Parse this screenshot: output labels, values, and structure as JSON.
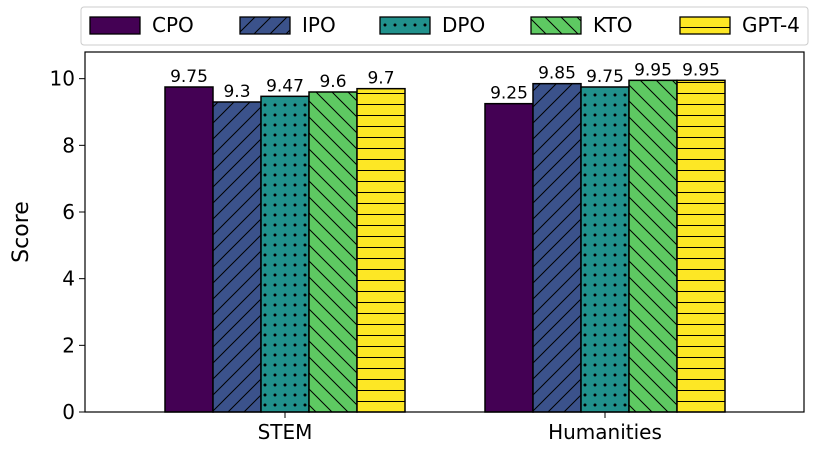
{
  "chart_data": {
    "type": "bar",
    "title": "",
    "xlabel": "",
    "ylabel": "Score",
    "ylim": [
      0,
      10.8
    ],
    "yticks": [
      0,
      2,
      4,
      6,
      8,
      10
    ],
    "categories": [
      "STEM",
      "Humanities"
    ],
    "grid": false,
    "legend_position": "top",
    "series": [
      {
        "name": "CPO",
        "values": [
          9.75,
          9.25
        ],
        "labels": [
          "9.75",
          "9.25"
        ],
        "color": "#440154",
        "hatch": "none"
      },
      {
        "name": "IPO",
        "values": [
          9.3,
          9.85
        ],
        "labels": [
          "9.3",
          "9.85"
        ],
        "color": "#3b528b",
        "hatch": "diag-forward"
      },
      {
        "name": "DPO",
        "values": [
          9.47,
          9.75
        ],
        "labels": [
          "9.47",
          "9.75"
        ],
        "color": "#21918c",
        "hatch": "dots"
      },
      {
        "name": "KTO",
        "values": [
          9.6,
          9.95
        ],
        "labels": [
          "9.6",
          "9.95"
        ],
        "color": "#5ec962",
        "hatch": "diag-back"
      },
      {
        "name": "GPT-4",
        "values": [
          9.7,
          9.95
        ],
        "labels": [
          "9.7",
          "9.95"
        ],
        "color": "#fde725",
        "hatch": "horizontal"
      }
    ]
  }
}
